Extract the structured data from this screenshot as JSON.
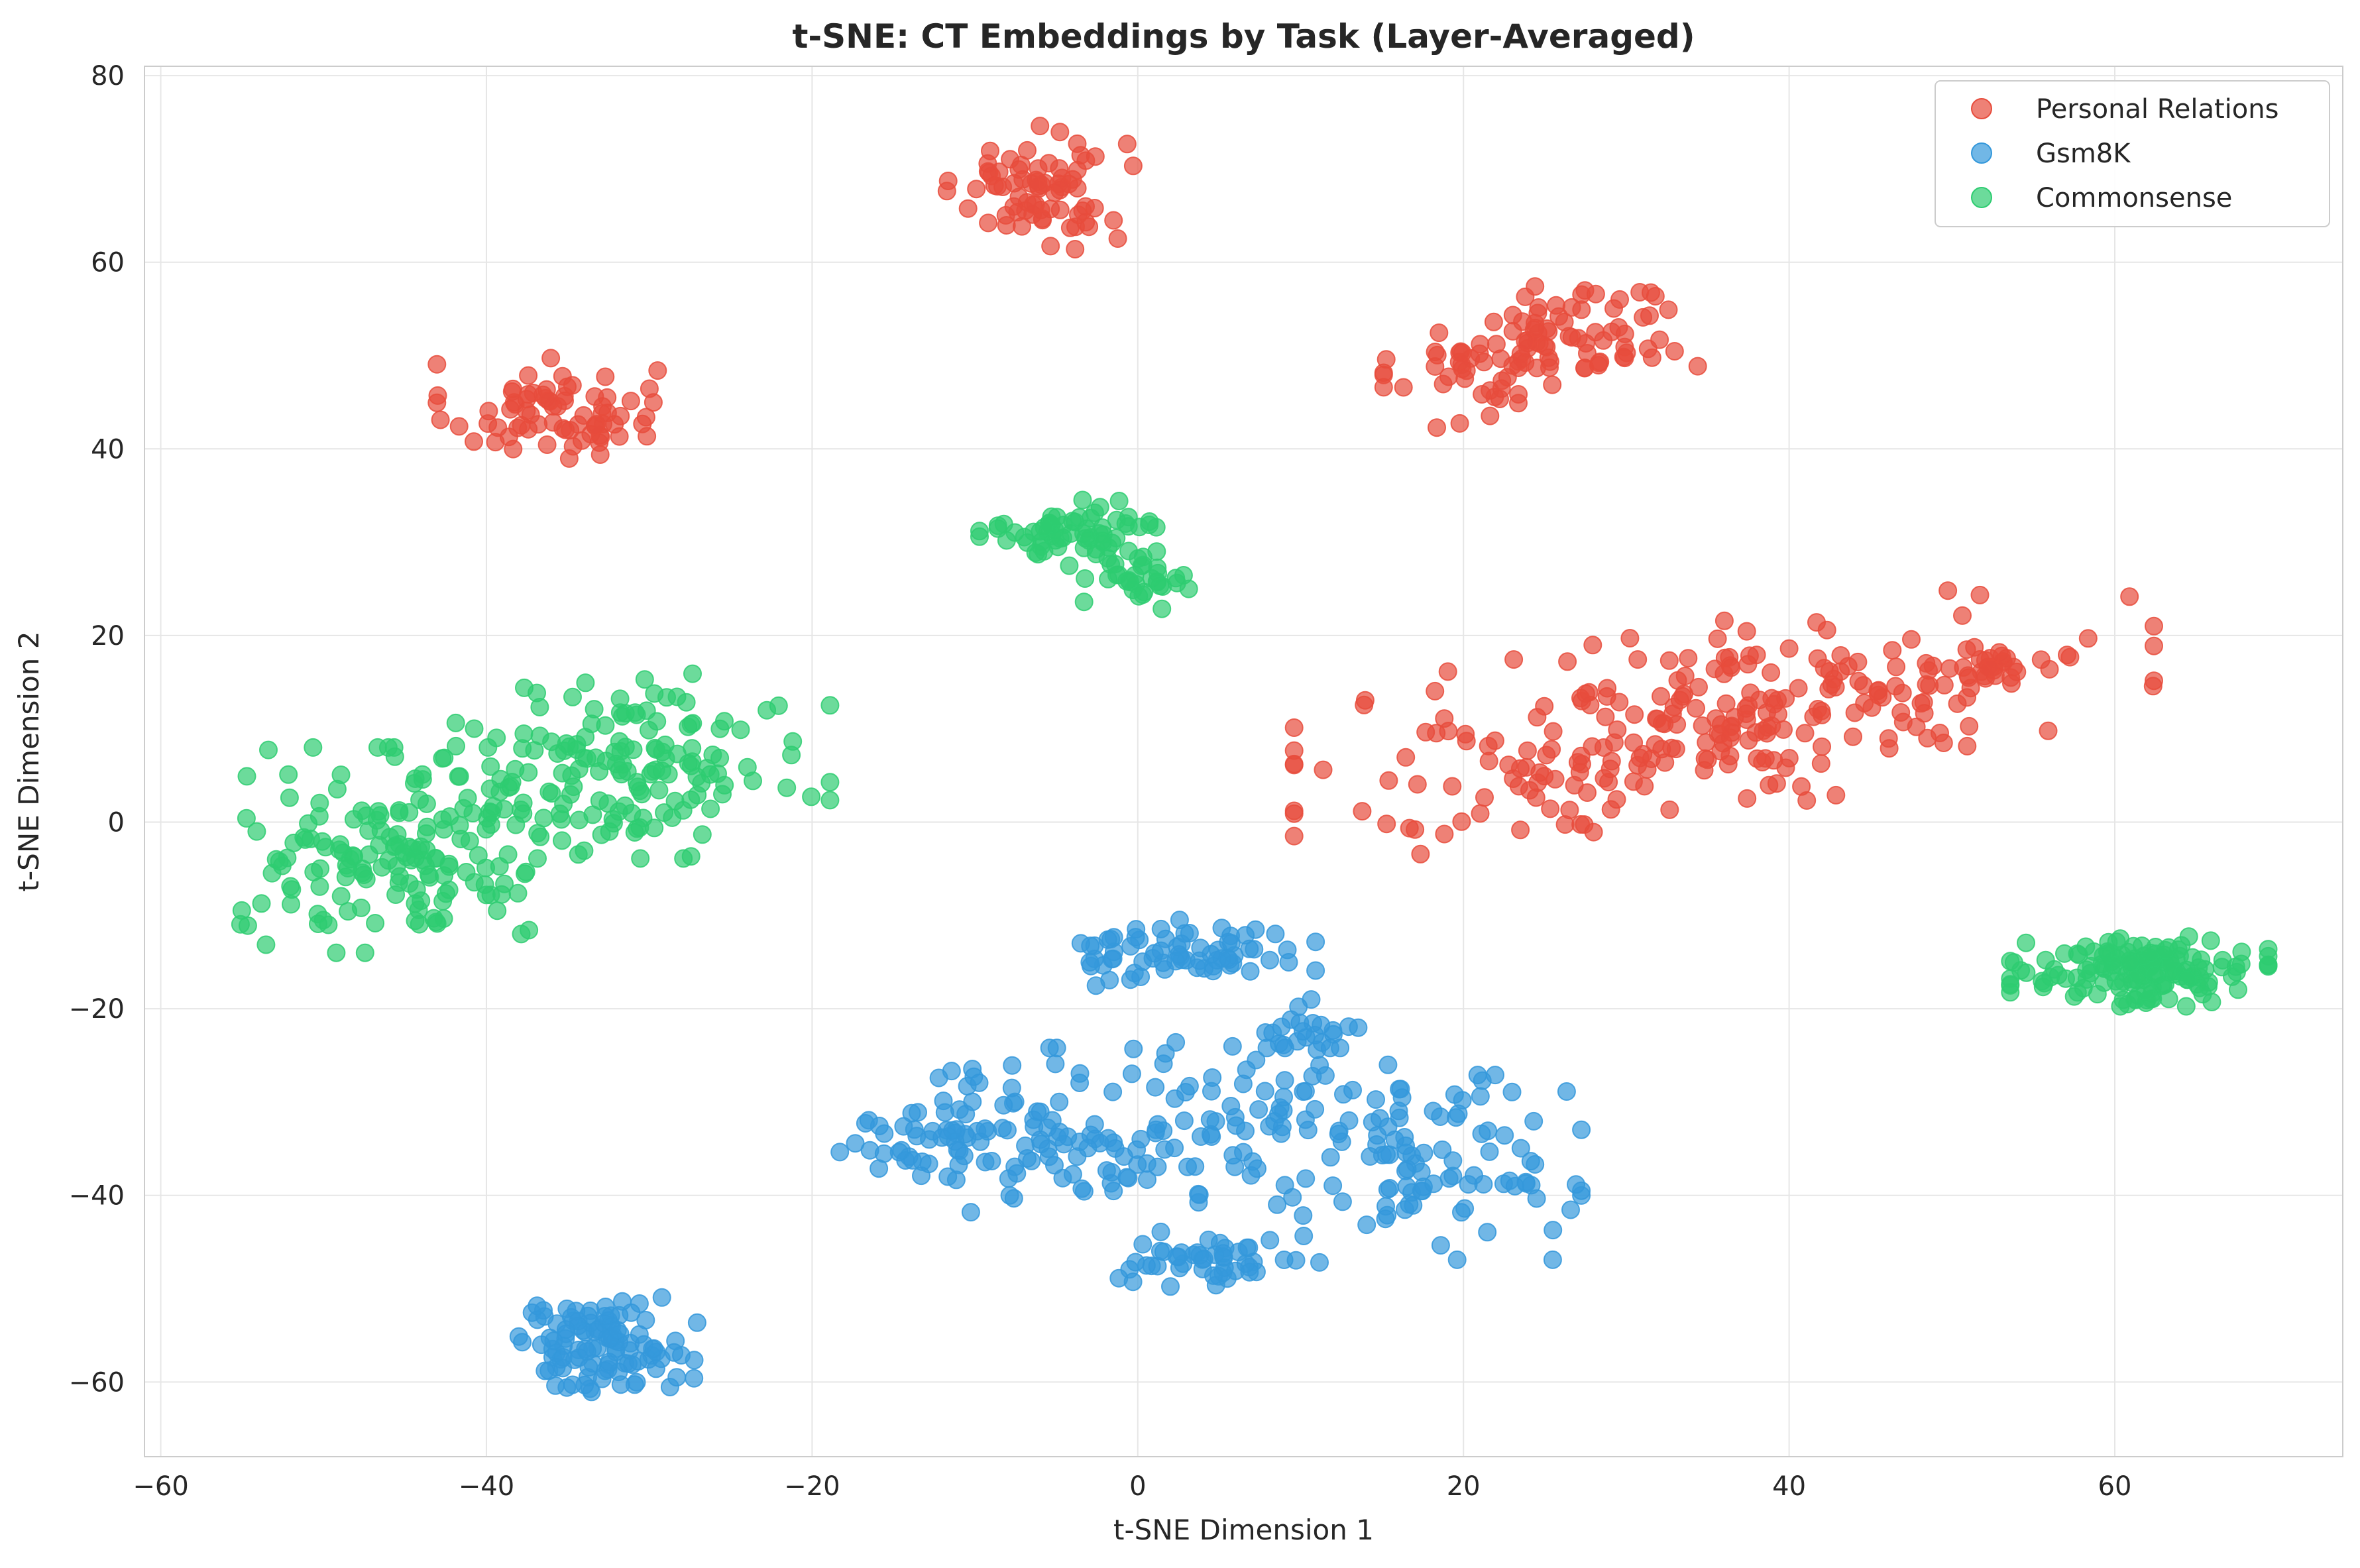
{
  "chart_data": {
    "type": "scatter",
    "title": "t-SNE: CT Embeddings by Task (Layer-Averaged)",
    "xlabel": "t-SNE Dimension 1",
    "ylabel": "t-SNE Dimension 2",
    "xlim": [
      -61,
      74
    ],
    "ylim": [
      -68,
      81
    ],
    "xticks": [
      -60,
      -40,
      -20,
      0,
      20,
      40,
      60
    ],
    "yticks": [
      -60,
      -40,
      -20,
      0,
      20,
      40,
      60,
      80
    ],
    "xtick_labels": [
      "−60",
      "−40",
      "−20",
      "0",
      "20",
      "40",
      "60"
    ],
    "ytick_labels": [
      "−60",
      "−40",
      "−20",
      "0",
      "20",
      "40",
      "60",
      "80"
    ],
    "grid": true,
    "legend_position": "top-right",
    "series": [
      {
        "name": "Personal Relations",
        "color": "#e74c3c",
        "clusters": [
          {
            "center": [
              -36,
              44
            ],
            "spread": [
              3.2,
              2.6
            ],
            "count": 75,
            "shape": "ellipse"
          },
          {
            "center": [
              -6,
              68
            ],
            "spread": [
              2.6,
              3.0
            ],
            "count": 75,
            "shape": "ellipse"
          },
          {
            "center": [
              25,
              51
            ],
            "spread": [
              4.5,
              3.0
            ],
            "count": 110,
            "shape": "diagonal"
          },
          {
            "center": [
              36,
              11
            ],
            "spread": [
              12.0,
              4.8
            ],
            "count": 260,
            "shape": "diagonal"
          },
          {
            "center": [
              52.5,
              16.5
            ],
            "spread": [
              1.2,
              1.3
            ],
            "count": 22,
            "shape": "ellipse"
          }
        ]
      },
      {
        "name": "Gsm8K",
        "color": "#3498db",
        "clusters": [
          {
            "center": [
              -33,
              -56
            ],
            "spread": [
              2.7,
              2.3
            ],
            "count": 110,
            "shape": "ellipse"
          },
          {
            "center": [
              3,
              -14
            ],
            "spread": [
              3.6,
              1.6
            ],
            "count": 70,
            "shape": "ellipse"
          },
          {
            "center": [
              -4,
              -33
            ],
            "spread": [
              6.5,
              4.0
            ],
            "count": 120,
            "shape": "ellipse"
          },
          {
            "center": [
              9,
              -30
            ],
            "spread": [
              4.5,
              5.0
            ],
            "count": 50,
            "shape": "ellipse"
          },
          {
            "center": [
              5,
              -47
            ],
            "spread": [
              2.8,
              1.4
            ],
            "count": 50,
            "shape": "ellipse"
          },
          {
            "center": [
              18,
              -37
            ],
            "spread": [
              4.2,
              4.5
            ],
            "count": 90,
            "shape": "ellipse"
          },
          {
            "center": [
              -12,
              -35
            ],
            "spread": [
              2.5,
              2.0
            ],
            "count": 30,
            "shape": "ellipse"
          },
          {
            "center": [
              11,
              -22
            ],
            "spread": [
              1.4,
              1.0
            ],
            "count": 18,
            "shape": "ellipse"
          }
        ]
      },
      {
        "name": "Commonsense",
        "color": "#2ecc71",
        "clusters": [
          {
            "center": [
              -4,
              31
            ],
            "spread": [
              2.6,
              1.6
            ],
            "count": 65,
            "shape": "ellipse"
          },
          {
            "center": [
              0,
              26.5
            ],
            "spread": [
              1.5,
              1.7
            ],
            "count": 35,
            "shape": "ellipse"
          },
          {
            "center": [
              -45,
              -3
            ],
            "spread": [
              5.0,
              5.0
            ],
            "count": 170,
            "shape": "ellipse"
          },
          {
            "center": [
              -31,
              6
            ],
            "spread": [
              5.5,
              4.5
            ],
            "count": 150,
            "shape": "ellipse"
          },
          {
            "center": [
              61.5,
              -16
            ],
            "spread": [
              3.6,
              1.7
            ],
            "count": 150,
            "shape": "ellipse"
          }
        ]
      }
    ]
  }
}
